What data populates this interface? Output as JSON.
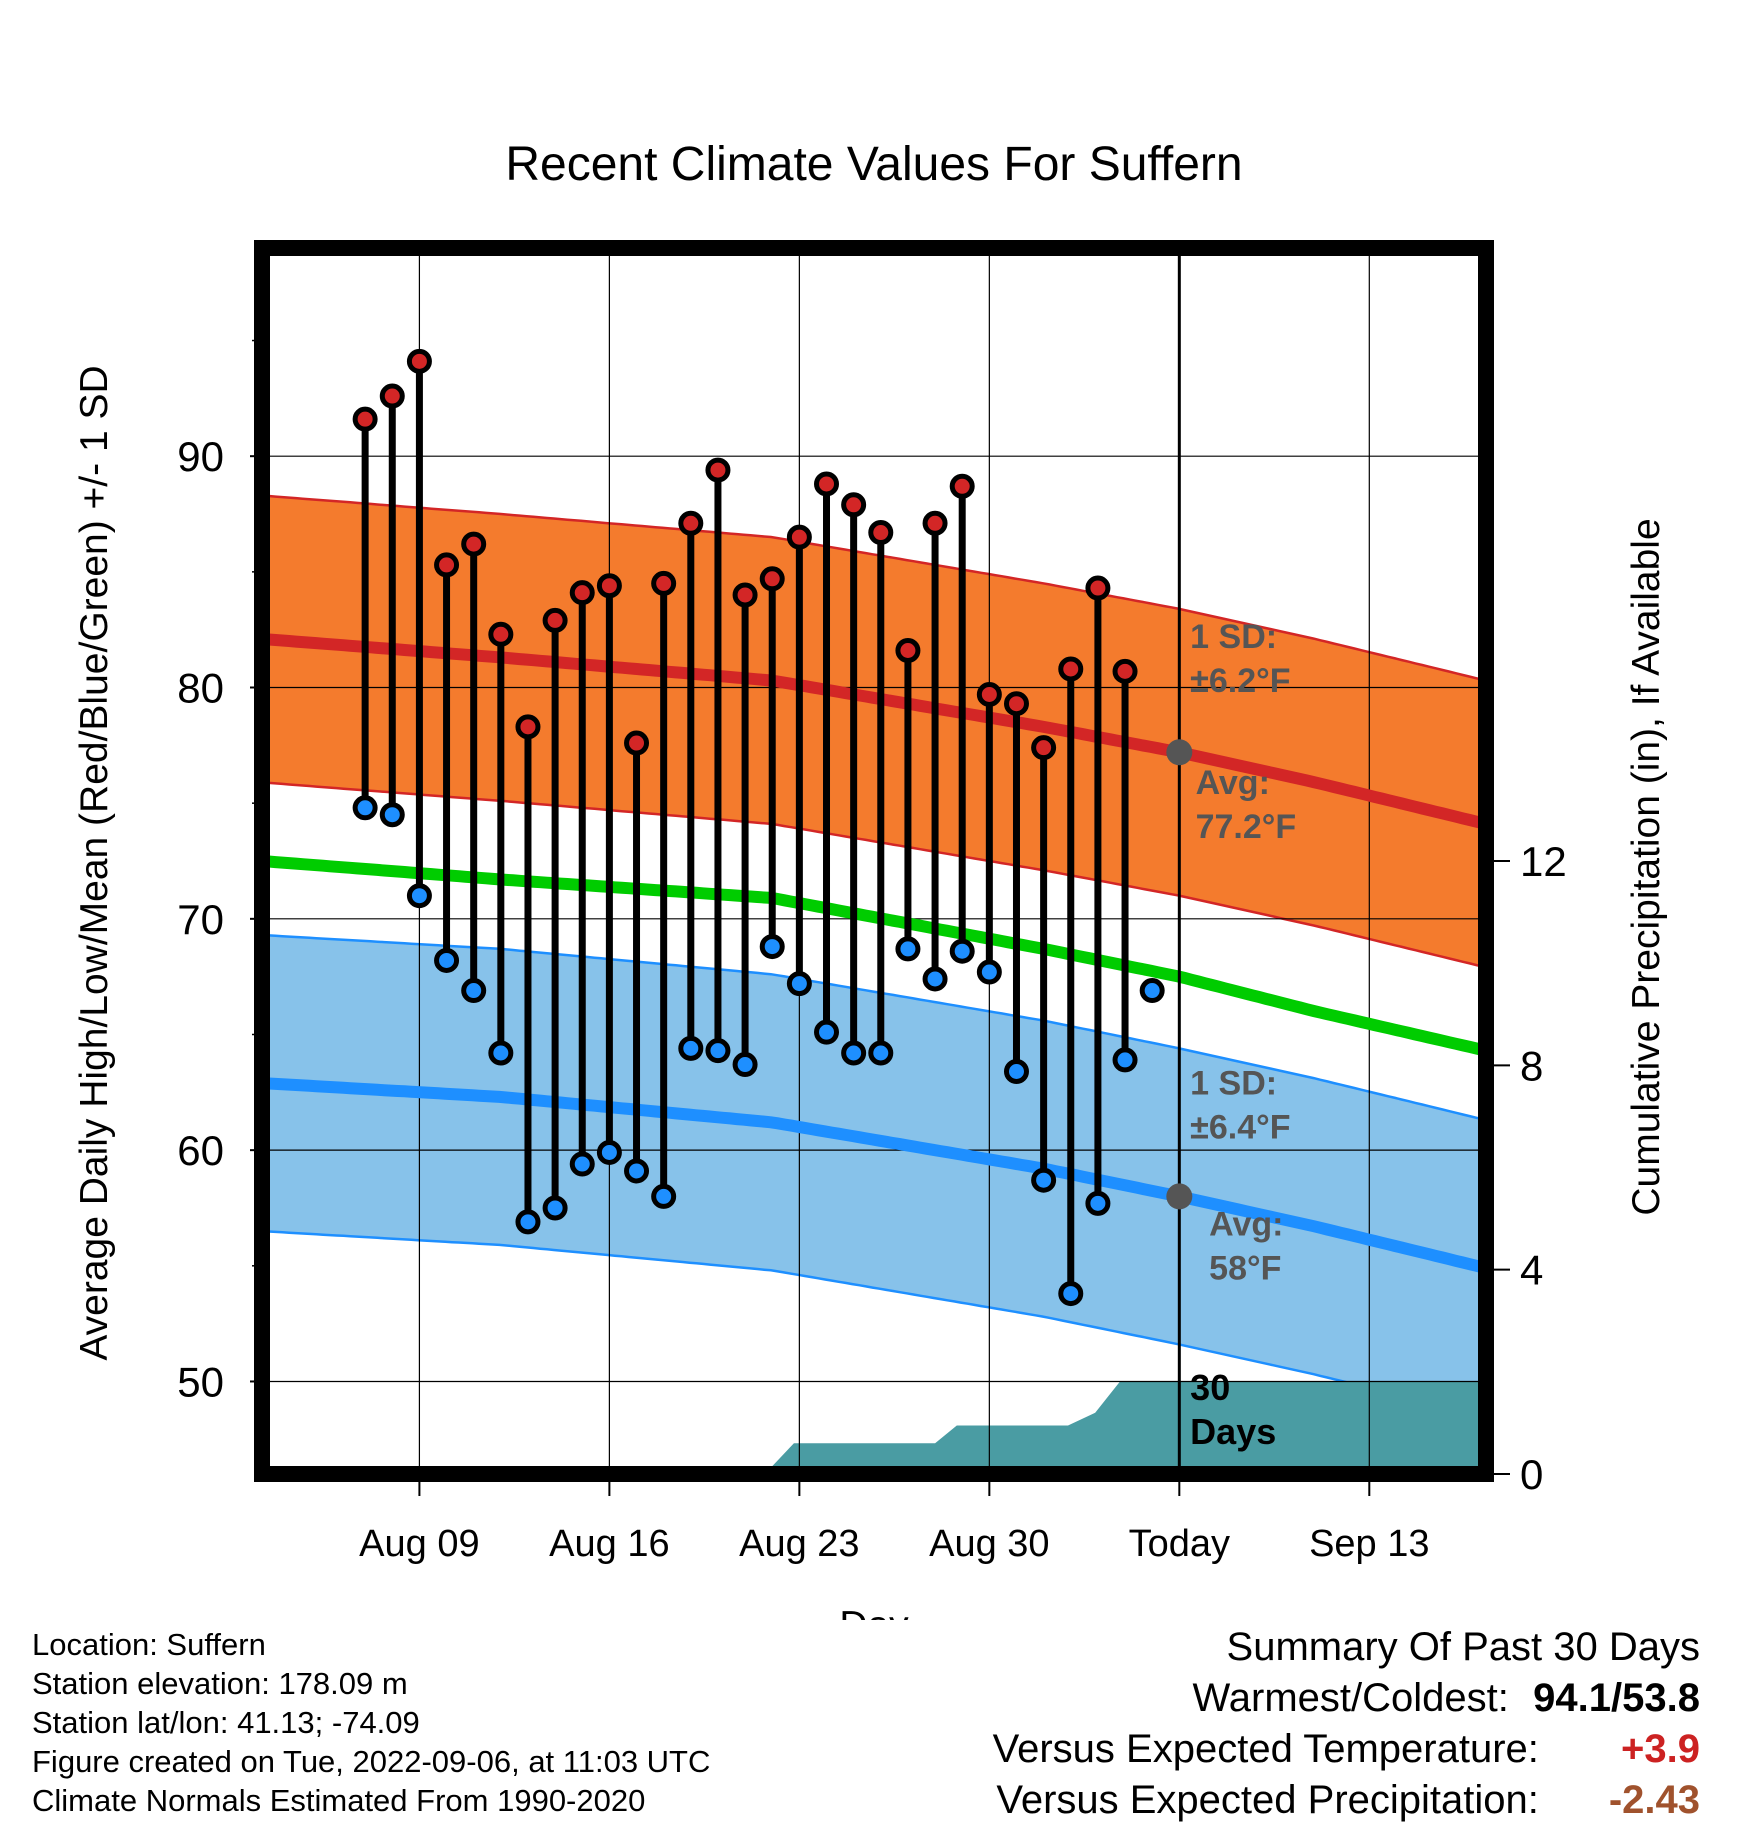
{
  "chart_data": {
    "type": "line",
    "title": "Recent Climate Values For Suffern",
    "xlabel": "Day",
    "ylabel": "Average Daily High/Low/Mean (Red/Blue/Green) +/- 1 SD",
    "y2label": "Cumulative Precipitation (in), If Available",
    "x_range_days": [
      -33.8,
      11.3
    ],
    "ylim": [
      46,
      99
    ],
    "y2lim": [
      0,
      24
    ],
    "grid": true,
    "x_ticks": [
      {
        "day": -28,
        "label": "Aug 09"
      },
      {
        "day": -21,
        "label": "Aug 16"
      },
      {
        "day": -14,
        "label": "Aug 23"
      },
      {
        "day": -7,
        "label": "Aug 30"
      },
      {
        "day": 0,
        "label": "Today"
      },
      {
        "day": 7,
        "label": "Sep 13"
      }
    ],
    "y_ticks": [
      50,
      60,
      70,
      80,
      90
    ],
    "y2_ticks": [
      0,
      4,
      8,
      12
    ],
    "colors": {
      "high": "#d32626",
      "low": "#1e8fff",
      "mean": "#00cc00",
      "high_band": "#f47b2d",
      "low_band": "#87c2ea",
      "precip": "#4a9ca3",
      "today_marker": "#555555"
    },
    "series": [
      {
        "name": "High",
        "x": [
          -30,
          -29,
          -28,
          -27,
          -26,
          -25,
          -24,
          -23,
          -22,
          -21,
          -20,
          -19,
          -18,
          -17,
          -16,
          -15,
          -14,
          -13,
          -12,
          -11,
          -10,
          -9,
          -8,
          -7,
          -6,
          -5,
          -4,
          -3,
          -2,
          -1
        ],
        "values": [
          91.6,
          92.6,
          94.1,
          85.3,
          86.2,
          82.3,
          78.3,
          82.9,
          84.1,
          84.4,
          77.6,
          84.5,
          87.1,
          89.4,
          84.0,
          84.7,
          86.5,
          88.8,
          87.9,
          86.7,
          81.6,
          87.1,
          88.7,
          79.7,
          79.3,
          77.4,
          80.8,
          84.3,
          80.7,
          null
        ]
      },
      {
        "name": "Low",
        "x": [
          -30,
          -29,
          -28,
          -27,
          -26,
          -25,
          -24,
          -23,
          -22,
          -21,
          -20,
          -19,
          -18,
          -17,
          -16,
          -15,
          -14,
          -13,
          -12,
          -11,
          -10,
          -9,
          -8,
          -7,
          -6,
          -5,
          -4,
          -3,
          -2,
          -1
        ],
        "values": [
          74.8,
          74.5,
          71.0,
          68.2,
          66.9,
          64.2,
          56.9,
          57.5,
          59.4,
          59.9,
          59.1,
          58.0,
          64.4,
          64.3,
          63.7,
          68.8,
          67.2,
          65.1,
          64.2,
          64.2,
          68.7,
          67.4,
          68.6,
          67.7,
          63.4,
          58.7,
          53.8,
          57.7,
          63.9,
          66.9
        ]
      },
      {
        "name": "Normal High",
        "x": [
          -33.8,
          -25,
          -15,
          -5,
          0,
          5,
          11.3
        ],
        "values": [
          82.1,
          81.3,
          80.3,
          78.3,
          77.2,
          75.9,
          74.1
        ],
        "sd": 6.2
      },
      {
        "name": "Normal Mean",
        "x": [
          -33.8,
          -25,
          -15,
          -5,
          0,
          5,
          11.3
        ],
        "values": [
          72.5,
          71.7,
          70.9,
          68.7,
          67.5,
          66.0,
          64.3
        ]
      },
      {
        "name": "Normal Low",
        "x": [
          -33.8,
          -25,
          -15,
          -5,
          0,
          5,
          11.3
        ],
        "values": [
          62.9,
          62.3,
          61.2,
          59.2,
          58.0,
          56.7,
          54.9
        ],
        "sd": 6.4
      },
      {
        "name": "Cumulative Precipitation",
        "axis": "y2",
        "x": [
          -33.8,
          -19.5,
          -18.8,
          -18,
          -17,
          -16,
          -15,
          -14.2,
          -13,
          -12,
          -11,
          -10,
          -9,
          -8.2,
          -7,
          -6,
          -5,
          -4.1,
          -3.1,
          -2.2,
          0,
          11.3
        ],
        "values": [
          0,
          0,
          0.15,
          0.15,
          0.15,
          0.15,
          0.15,
          0.6,
          0.6,
          0.6,
          0.6,
          0.6,
          0.6,
          0.95,
          0.95,
          0.95,
          0.95,
          0.95,
          1.2,
          1.8,
          1.8,
          1.8
        ]
      }
    ],
    "annotations": {
      "high_sd": [
        "1 SD:",
        "±6.2°F"
      ],
      "high_avg": [
        "Avg:",
        "77.2°F"
      ],
      "low_sd": [
        "1 SD:",
        "±6.4°F"
      ],
      "low_avg": [
        "Avg:",
        "58°F"
      ],
      "window": [
        "30",
        "Days"
      ]
    }
  },
  "footer": {
    "location": "Location: Suffern",
    "elevation": "Station elevation: 178.09 m",
    "latlon": "Station lat/lon: 41.13; -74.09",
    "created": "Figure created on Tue, 2022-09-06, at 11:03 UTC",
    "normals": "Climate Normals Estimated From 1990-2020"
  },
  "summary": {
    "title": "Summary Of Past 30 Days",
    "warmest_label": "Warmest/Coldest:",
    "warmest_value": "94.1/53.8",
    "temp_label": "Versus Expected Temperature:",
    "temp_value": "+3.9",
    "temp_color": "#cc2222",
    "precip_label": "Versus Expected Precipitation:",
    "precip_value": "-2.43",
    "precip_color": "#a0522d"
  }
}
